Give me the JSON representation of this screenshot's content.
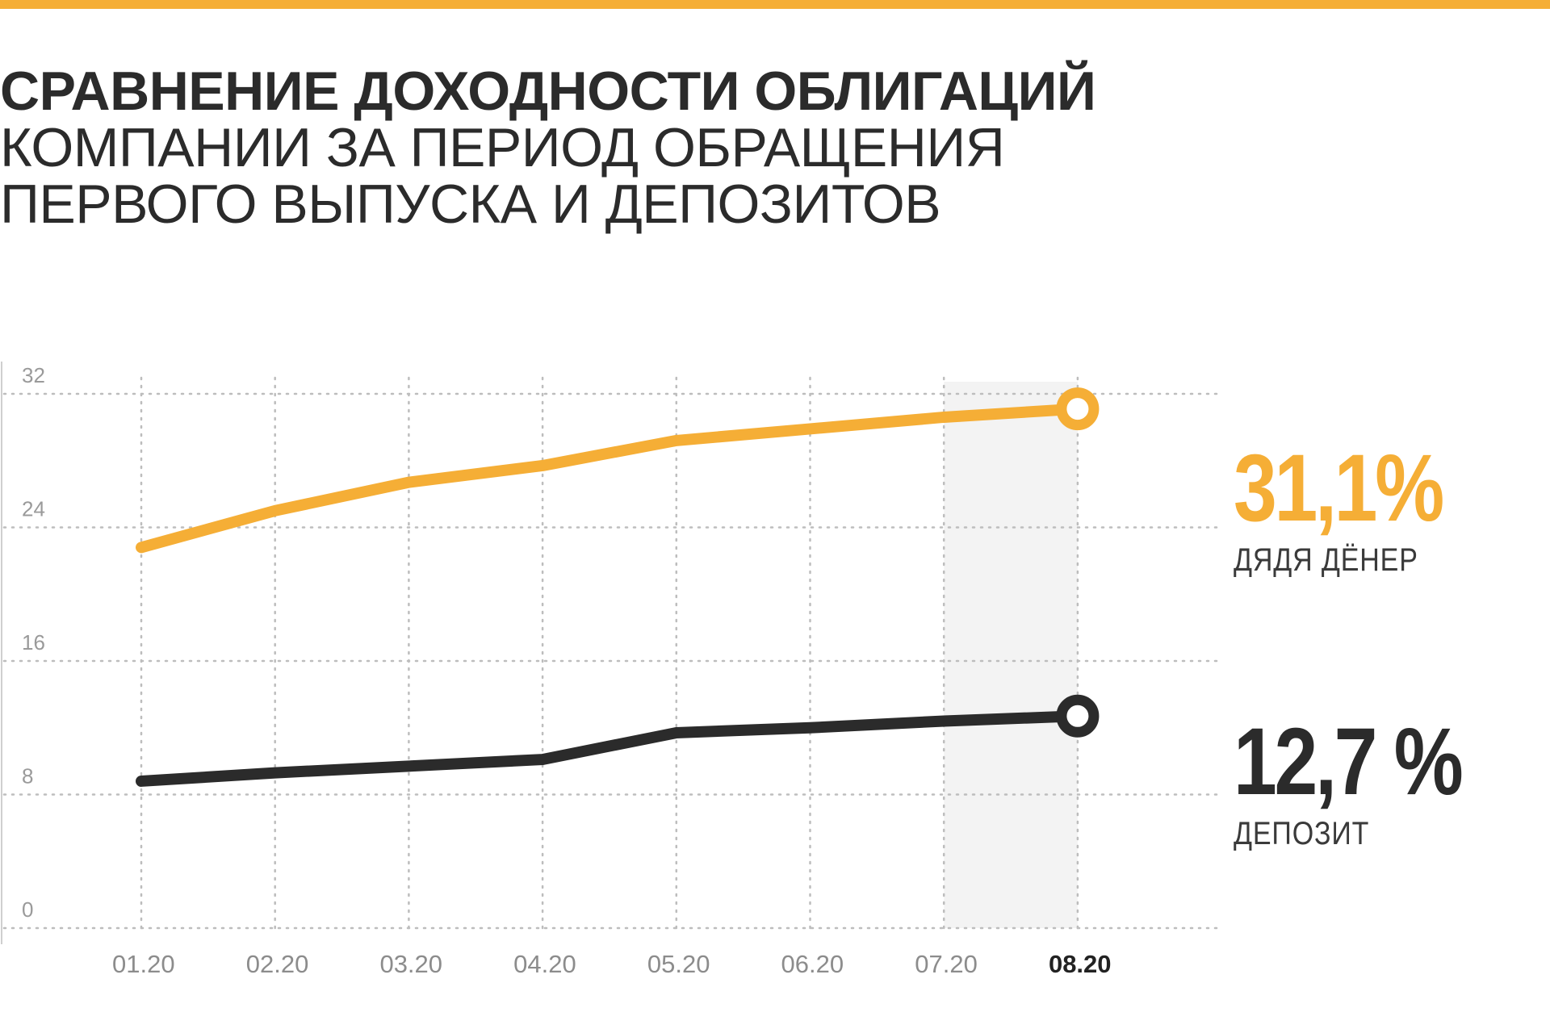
{
  "title": {
    "line1": "СРАВНЕНИЕ ДОХОДНОСТИ ОБЛИГАЦИЙ",
    "line2": "КОМПАНИИ ЗА ПЕРИОД ОБРАЩЕНИЯ",
    "line3": "ПЕРВОГО ВЫПУСКА И ДЕПОЗИТОВ"
  },
  "colors": {
    "accent": "#f5ae36",
    "dark": "#2b2b2b",
    "highlight_band": "#f3f3f3"
  },
  "callouts": {
    "bonds": {
      "value": "31,1%",
      "label": "ДЯДЯ ДЁНЕР"
    },
    "deposit": {
      "value": "12,7 %",
      "label": "ДЕПОЗИТ"
    }
  },
  "chart_data": {
    "type": "line",
    "x": [
      "01.20",
      "02.20",
      "03.20",
      "04.20",
      "05.20",
      "06.20",
      "07.20",
      "08.20"
    ],
    "highlight_category": "08.20",
    "yticks": [
      0,
      8,
      16,
      24,
      32
    ],
    "ylim": [
      0,
      32
    ],
    "grid": true,
    "series": [
      {
        "name": "ДЯДЯ ДЁНЕР",
        "color": "#f5ae36",
        "values": [
          22.8,
          25.0,
          26.7,
          27.7,
          29.2,
          29.9,
          30.6,
          31.1
        ]
      },
      {
        "name": "ДЕПОЗИТ",
        "color": "#2b2b2b",
        "values": [
          8.8,
          9.3,
          9.7,
          10.1,
          11.7,
          12.0,
          12.4,
          12.7
        ]
      }
    ]
  }
}
